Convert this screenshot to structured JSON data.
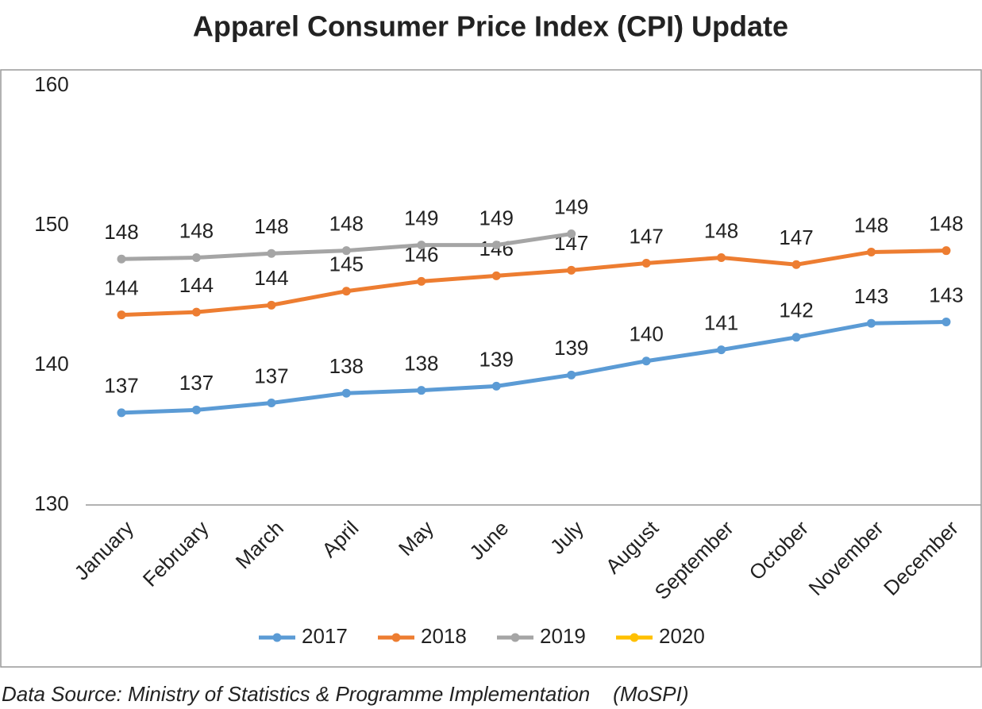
{
  "chart_data": {
    "type": "line",
    "title": "Apparel Consumer Price Index (CPI) Update",
    "source": "Data Source: Ministry of Statistics & Programme Implementation    (MoSPI)",
    "categories": [
      "January",
      "February",
      "March",
      "April",
      "May",
      "June",
      "July",
      "August",
      "September",
      "October",
      "November",
      "December"
    ],
    "ylim": [
      130,
      160
    ],
    "yticks": [
      130,
      140,
      150,
      160
    ],
    "grid": false,
    "legend": "bottom",
    "series": [
      {
        "name": "2017",
        "color": "#5b9bd5",
        "values": [
          136.6,
          136.8,
          137.3,
          138.0,
          138.2,
          138.5,
          139.3,
          140.3,
          141.1,
          142.0,
          143.0,
          143.1
        ],
        "value_labels": [
          "137",
          "137",
          "137",
          "138",
          "138",
          "139",
          "139",
          "140",
          "141",
          "142",
          "143",
          "143"
        ]
      },
      {
        "name": "2018",
        "color": "#ed7d31",
        "values": [
          143.6,
          143.8,
          144.3,
          145.3,
          146.0,
          146.4,
          146.8,
          147.3,
          147.7,
          147.2,
          148.1,
          148.2
        ],
        "value_labels": [
          "144",
          "144",
          "144",
          "145",
          "146",
          "146",
          "147",
          "147",
          "148",
          "147",
          "148",
          "148"
        ]
      },
      {
        "name": "2019",
        "color": "#a5a5a5",
        "values": [
          147.6,
          147.7,
          148.0,
          148.2,
          148.6,
          148.6,
          149.4,
          null,
          null,
          null,
          null,
          null
        ],
        "value_labels": [
          "148",
          "148",
          "148",
          "148",
          "149",
          "149",
          "149",
          null,
          null,
          null,
          null,
          null
        ]
      },
      {
        "name": "2020",
        "color": "#ffc000",
        "values": [
          null,
          null,
          null,
          null,
          null,
          null,
          null,
          null,
          null,
          null,
          null,
          null
        ]
      }
    ]
  }
}
